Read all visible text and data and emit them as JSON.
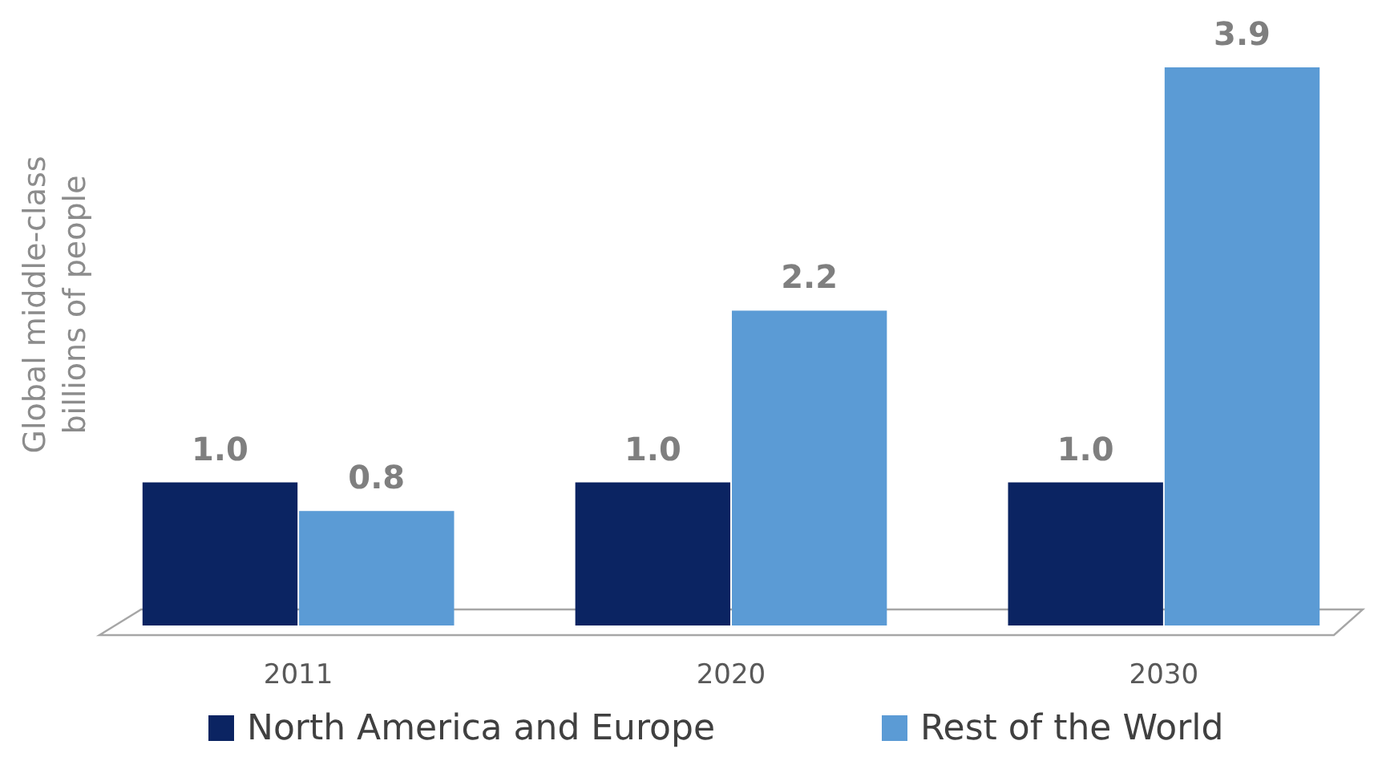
{
  "chart_data": {
    "type": "bar",
    "ylabel": "Global middle-class\nbillions of people",
    "categories": [
      "2011",
      "2020",
      "2030"
    ],
    "series": [
      {
        "name": "North America and Europe",
        "color": "#0b2462",
        "values": [
          1.0,
          1.0,
          1.0
        ],
        "value_labels": [
          "1.0",
          "1.0",
          "1.0"
        ]
      },
      {
        "name": "Rest of the World",
        "color": "#5b9bd5",
        "values": [
          0.8,
          2.2,
          3.9
        ],
        "value_labels": [
          "0.8",
          "2.2",
          "3.9"
        ]
      }
    ],
    "legend": "bottom",
    "grid": false
  }
}
